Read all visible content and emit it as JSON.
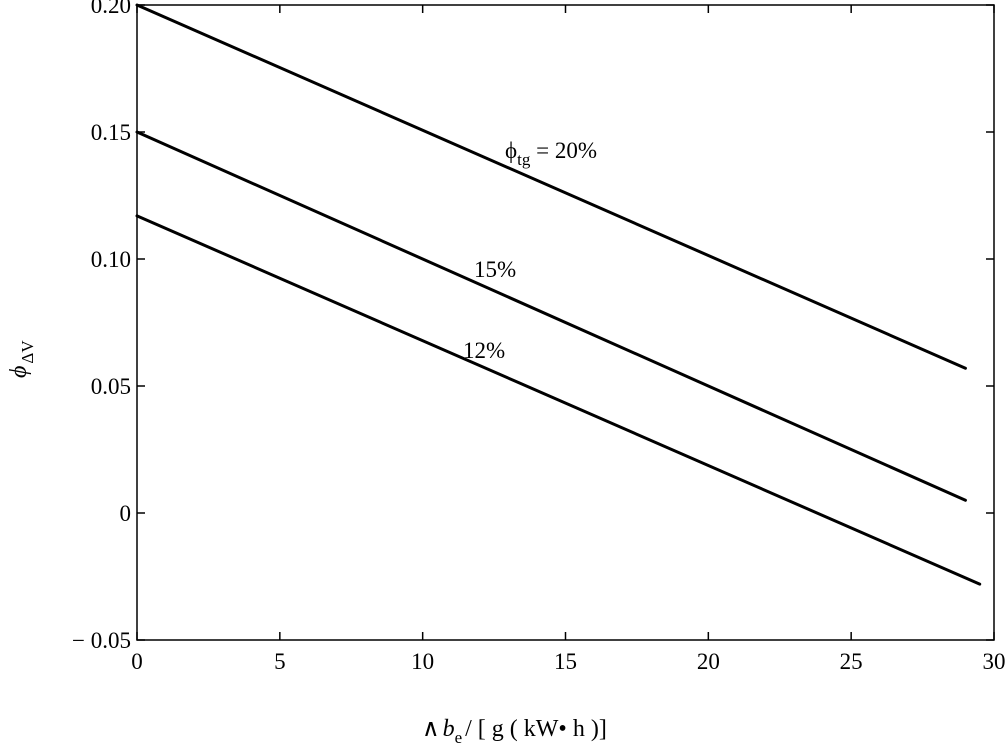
{
  "chart_data": {
    "type": "line",
    "x_axis": {
      "range": [
        0,
        30
      ],
      "ticks": [
        0,
        5,
        10,
        15,
        20,
        25,
        30
      ],
      "tick_labels": [
        "0",
        "5",
        "10",
        "15",
        "20",
        "25",
        "30"
      ],
      "label": {
        "prefix": "∧",
        "symbol": "b",
        "subscript": "e",
        "suffix": "/ [ g ( kW• h )]"
      }
    },
    "y_axis": {
      "range": [
        -0.05,
        0.2
      ],
      "ticks": [
        -0.05,
        0,
        0.05,
        0.1,
        0.15,
        0.2
      ],
      "tick_labels": [
        "− 0.05",
        "0",
        "0.05",
        "0.10",
        "0.15",
        "0.20"
      ],
      "label": {
        "symbol": "ϕ",
        "subscript": "ΔV"
      }
    },
    "grid": false,
    "line_color": "#000000",
    "series": [
      {
        "name": "ϕtg = 20%",
        "label": {
          "symbol": "ϕ",
          "subscript": "tg",
          "suffix": " = 20%"
        },
        "x": [
          0,
          29
        ],
        "y": [
          0.2,
          0.057
        ]
      },
      {
        "name": "15%",
        "label": {
          "text": "15%"
        },
        "x": [
          0,
          29
        ],
        "y": [
          0.15,
          0.005
        ]
      },
      {
        "name": "12%",
        "label": {
          "text": "12%"
        },
        "x": [
          0,
          29.5
        ],
        "y": [
          0.117,
          -0.028
        ]
      }
    ]
  }
}
